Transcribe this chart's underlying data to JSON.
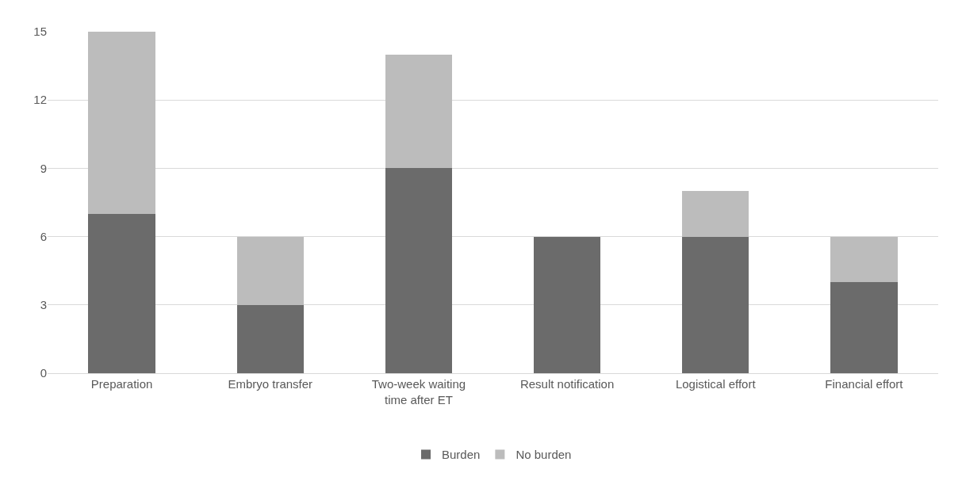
{
  "chart_data": {
    "type": "bar",
    "stacked": true,
    "categories": [
      "Preparation",
      "Embryo transfer",
      "Two-week waiting time after ET",
      "Result notification",
      "Logistical effort",
      "Financial effort"
    ],
    "series": [
      {
        "name": "Burden",
        "color": "#6b6b6b",
        "values": [
          7,
          3,
          9,
          6,
          6,
          4
        ]
      },
      {
        "name": "No burden",
        "color": "#bcbcbc",
        "values": [
          8,
          3,
          5,
          0,
          2,
          2
        ]
      }
    ],
    "ylim": [
      0,
      15
    ],
    "yticks": [
      0,
      3,
      6,
      9,
      12,
      15
    ],
    "grid": "y",
    "legend": "bottom"
  }
}
